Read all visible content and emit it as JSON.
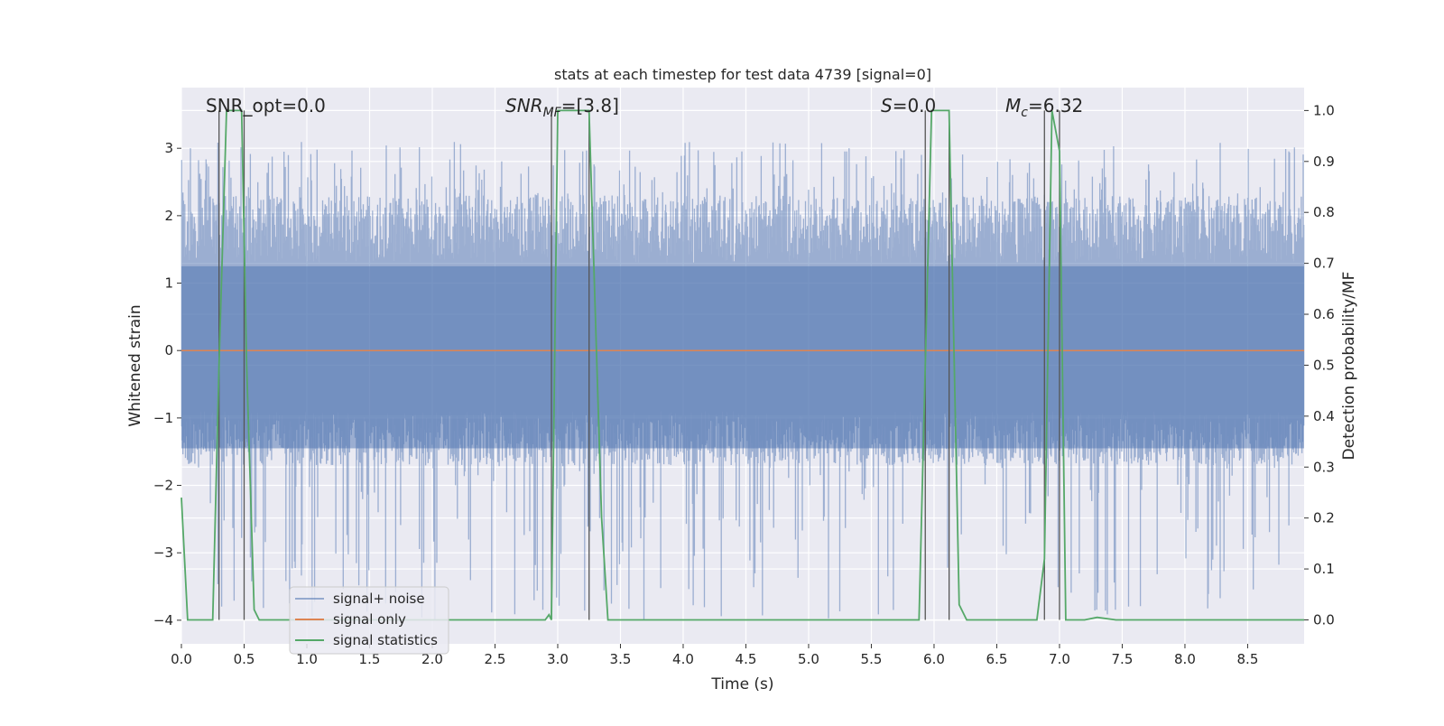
{
  "chart_data": {
    "type": "line",
    "title": "stats at each timestep for test data 4739 [signal=0]",
    "xlabel": "Time (s)",
    "ylabel_left": "Whitened strain",
    "ylabel_right": "Detection probability/MF",
    "xlim": [
      0.0,
      8.95
    ],
    "ylim_left": [
      -4.35,
      3.9
    ],
    "ylim_right": [
      -0.047,
      1.045
    ],
    "grid": true,
    "legend_placement": "lower-left",
    "x_ticks": [
      "0.0",
      "0.5",
      "1.0",
      "1.5",
      "2.0",
      "2.5",
      "3.0",
      "3.5",
      "4.0",
      "4.5",
      "5.0",
      "5.5",
      "6.0",
      "6.5",
      "7.0",
      "7.5",
      "8.0",
      "8.5"
    ],
    "x_tick_values": [
      0.0,
      0.5,
      1.0,
      1.5,
      2.0,
      2.5,
      3.0,
      3.5,
      4.0,
      4.5,
      5.0,
      5.5,
      6.0,
      6.5,
      7.0,
      7.5,
      8.0,
      8.5
    ],
    "y_ticks_left": [
      "−4",
      "−3",
      "−2",
      "−1",
      "0",
      "1",
      "2",
      "3"
    ],
    "y_tick_values_left": [
      -4,
      -3,
      -2,
      -1,
      0,
      1,
      2,
      3
    ],
    "y_ticks_right": [
      "0.0",
      "0.1",
      "0.2",
      "0.3",
      "0.4",
      "0.5",
      "0.6",
      "0.7",
      "0.8",
      "0.9",
      "1.0"
    ],
    "y_tick_values_right": [
      0.0,
      0.1,
      0.2,
      0.3,
      0.4,
      0.5,
      0.6,
      0.7,
      0.8,
      0.9,
      1.0
    ],
    "annotations": {
      "snr_opt": "SNR_opt=0.0",
      "snr_mf_prefix": "SNR",
      "snr_mf_sub": "MF",
      "snr_mf_value": "=[3.8]",
      "s_prefix": "S",
      "s_value": "=0.0",
      "mc_prefix": "M",
      "mc_sub": "c",
      "mc_value": "=6.32"
    },
    "series": [
      {
        "name": "signal+ noise",
        "color": "#4c72b0",
        "axis": "left",
        "style": "noise band",
        "typical_envelope": [
          -1.7,
          2.3
        ],
        "extremes": [
          -4.0,
          3.1
        ]
      },
      {
        "name": "signal only",
        "color": "#dd8452",
        "axis": "left",
        "x": [
          0.0,
          8.95
        ],
        "y": [
          0.0,
          0.0
        ]
      },
      {
        "name": "signal statistics",
        "color": "#55a868",
        "axis": "right",
        "x": [
          0.0,
          0.05,
          0.25,
          0.3,
          0.36,
          0.48,
          0.52,
          0.58,
          0.62,
          2.9,
          2.93,
          2.95,
          3.0,
          3.25,
          3.35,
          3.4,
          5.88,
          5.98,
          6.02,
          6.12,
          6.2,
          6.26,
          6.82,
          6.88,
          6.94,
          7.0,
          7.05,
          7.2,
          7.3,
          7.45,
          8.95
        ],
        "y": [
          0.24,
          0.0,
          0.0,
          0.5,
          1.0,
          1.0,
          0.5,
          0.02,
          0.0,
          0.0,
          0.01,
          0.0,
          1.0,
          1.0,
          0.2,
          0.0,
          0.0,
          1.0,
          1.0,
          1.0,
          0.03,
          0.0,
          0.0,
          0.12,
          1.0,
          0.92,
          0.0,
          0.0,
          0.005,
          0.0,
          0.0
        ]
      }
    ],
    "vertical_markers_x": [
      0.3,
      0.5,
      2.95,
      3.25,
      5.93,
      6.12,
      6.88,
      7.0
    ],
    "marker_color": "#555555"
  }
}
